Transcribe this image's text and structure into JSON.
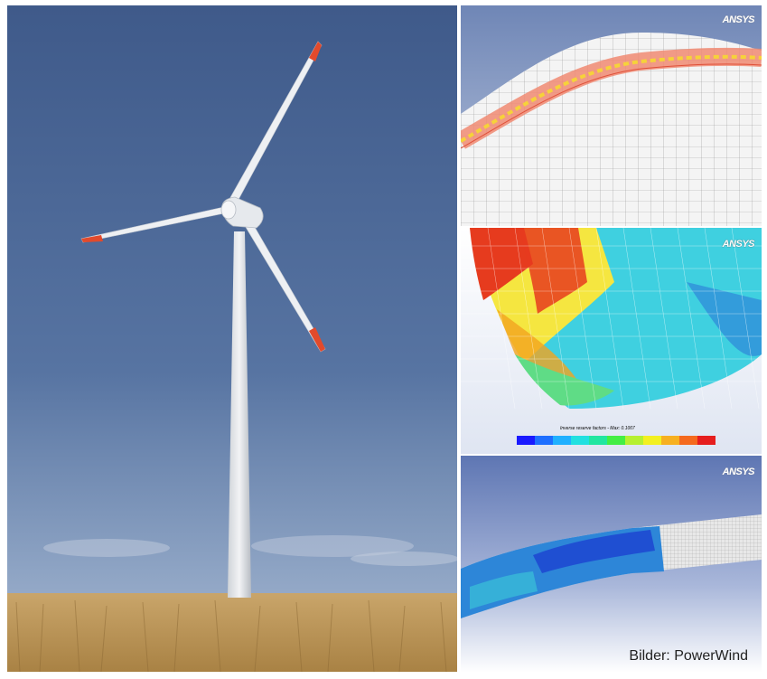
{
  "photo": {
    "subject": "wind-turbine",
    "sky_color": "#4f6b97",
    "blade_tip_color": "#e24a2c"
  },
  "fem_panels": [
    {
      "id": "blade-mesh-section",
      "logo": "ANSYS"
    },
    {
      "id": "reserve-factor-plot",
      "logo": "ANSYS",
      "legend_title": "Inverse reserve factors - Max: 0.1007"
    },
    {
      "id": "blade-stress-view",
      "logo": "ANSYS"
    }
  ],
  "credit": "Bilder: PowerWind"
}
